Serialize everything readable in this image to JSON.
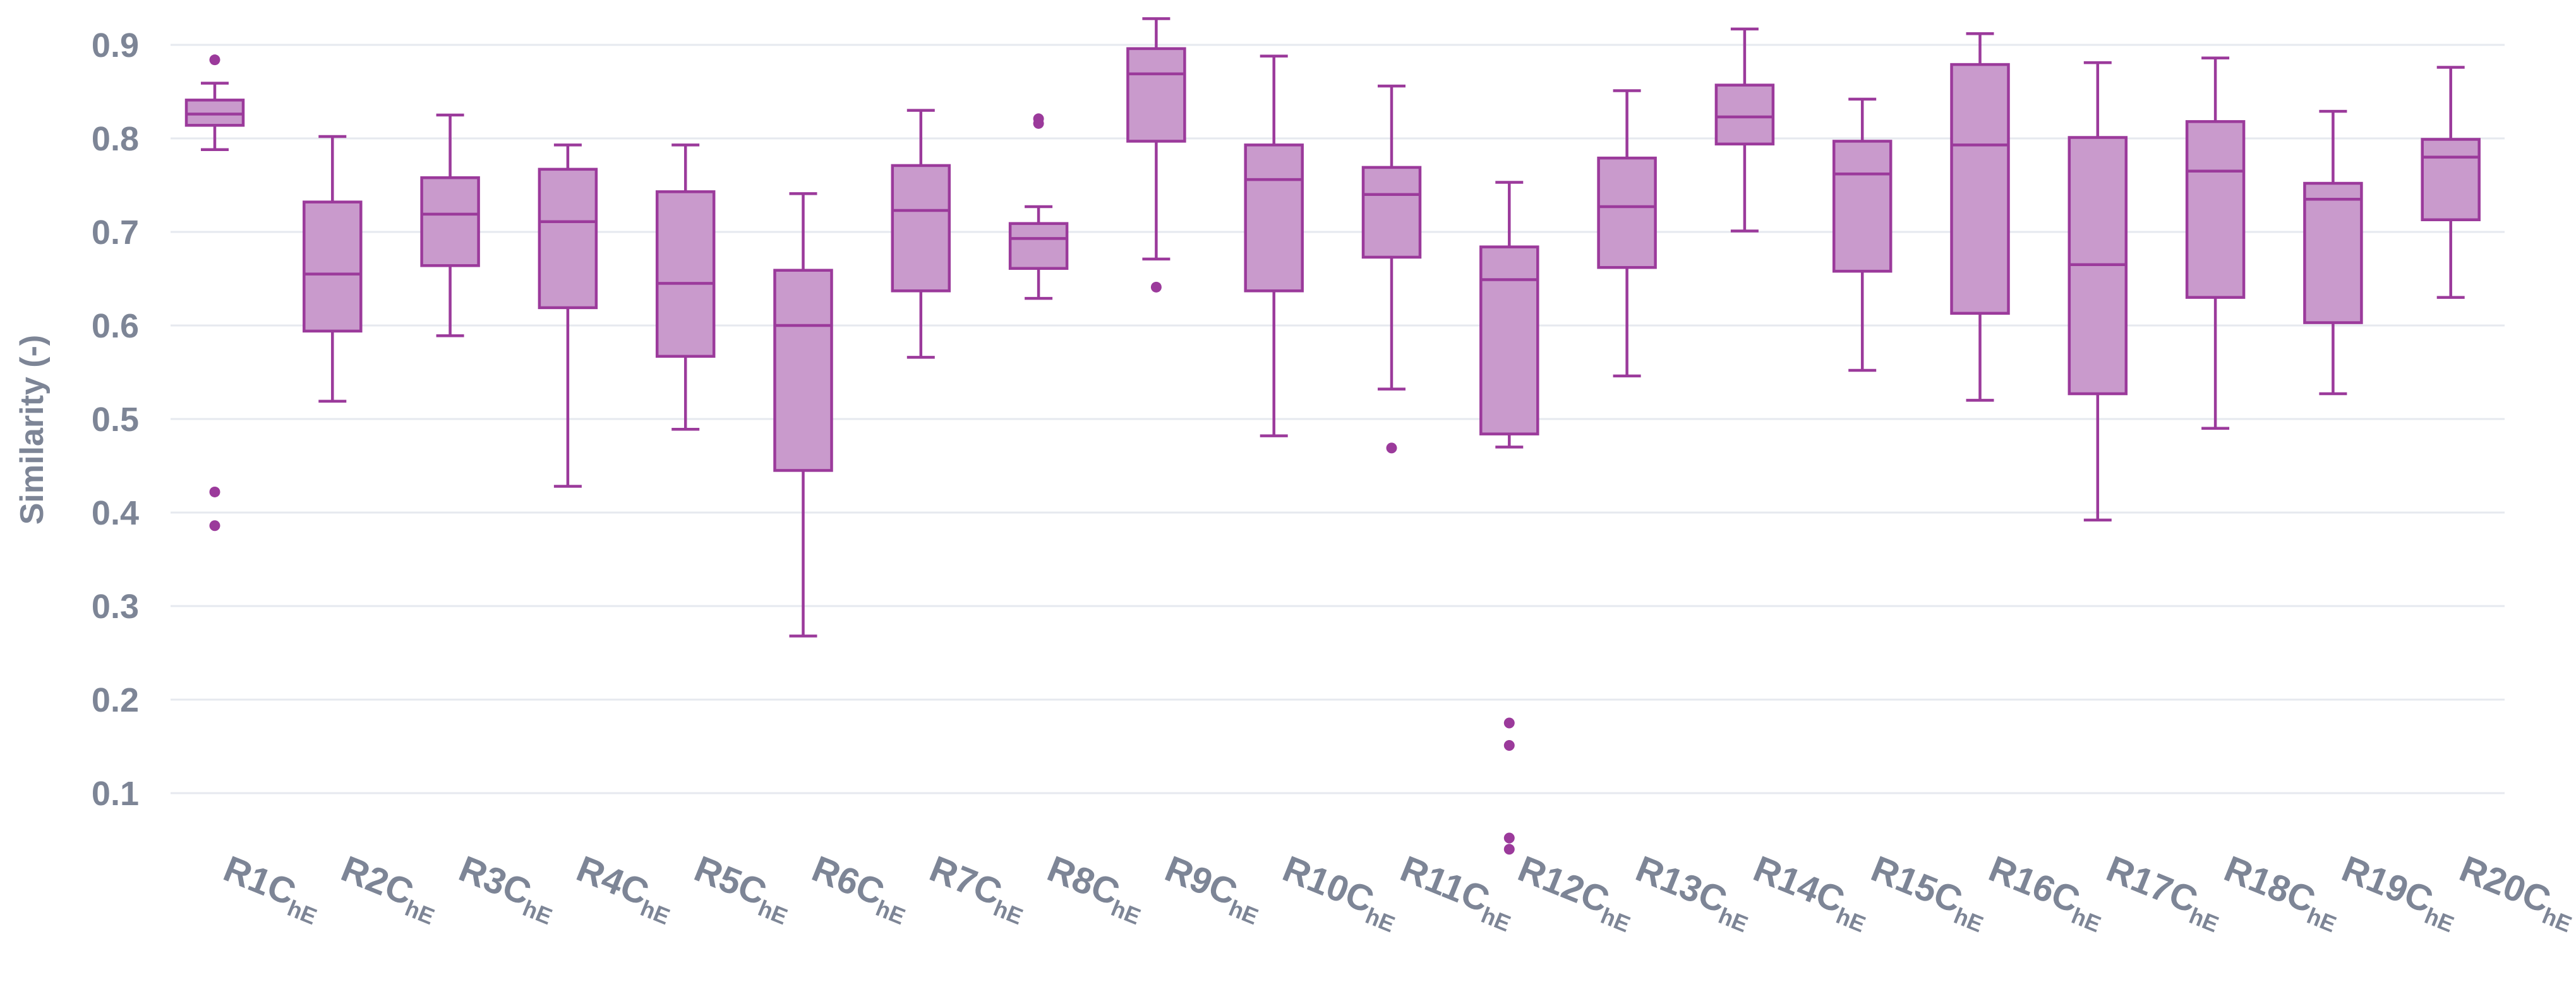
{
  "chart_data": {
    "type": "boxplot",
    "title": "",
    "xlabel": "",
    "ylabel": "Similarity (-)",
    "ylim": [
      0.04,
      0.93
    ],
    "yticks": [
      0.1,
      0.2,
      0.3,
      0.4,
      0.5,
      0.6,
      0.7,
      0.8,
      0.9
    ],
    "grid": true,
    "colors": {
      "fill": "#c99acc",
      "stroke": "#9b3a9b",
      "grid": "#e6e9ef",
      "text": "#7d8596"
    },
    "categories": [
      {
        "label": "R1C",
        "sub": "hE",
        "min": 0.788,
        "q1": 0.814,
        "median": 0.826,
        "q3": 0.841,
        "max": 0.859,
        "outliers": [
          0.884,
          0.422,
          0.386
        ]
      },
      {
        "label": "R2C",
        "sub": "hE",
        "min": 0.519,
        "q1": 0.594,
        "median": 0.655,
        "q3": 0.732,
        "max": 0.802,
        "outliers": []
      },
      {
        "label": "R3C",
        "sub": "hE",
        "min": 0.589,
        "q1": 0.664,
        "median": 0.719,
        "q3": 0.758,
        "max": 0.825,
        "outliers": []
      },
      {
        "label": "R4C",
        "sub": "hE",
        "min": 0.428,
        "q1": 0.619,
        "median": 0.711,
        "q3": 0.767,
        "max": 0.793,
        "outliers": []
      },
      {
        "label": "R5C",
        "sub": "hE",
        "min": 0.489,
        "q1": 0.567,
        "median": 0.645,
        "q3": 0.743,
        "max": 0.793,
        "outliers": []
      },
      {
        "label": "R6C",
        "sub": "hE",
        "min": 0.268,
        "q1": 0.445,
        "median": 0.6,
        "q3": 0.659,
        "max": 0.741,
        "outliers": []
      },
      {
        "label": "R7C",
        "sub": "hE",
        "min": 0.566,
        "q1": 0.637,
        "median": 0.723,
        "q3": 0.771,
        "max": 0.83,
        "outliers": []
      },
      {
        "label": "R8C",
        "sub": "hE",
        "min": 0.629,
        "q1": 0.661,
        "median": 0.693,
        "q3": 0.709,
        "max": 0.727,
        "outliers": [
          0.821,
          0.816
        ]
      },
      {
        "label": "R9C",
        "sub": "hE",
        "min": 0.671,
        "q1": 0.797,
        "median": 0.869,
        "q3": 0.896,
        "max": 0.928,
        "outliers": [
          0.641
        ]
      },
      {
        "label": "R10C",
        "sub": "hE",
        "min": 0.482,
        "q1": 0.637,
        "median": 0.756,
        "q3": 0.793,
        "max": 0.888,
        "outliers": []
      },
      {
        "label": "R11C",
        "sub": "hE",
        "min": 0.532,
        "q1": 0.673,
        "median": 0.74,
        "q3": 0.769,
        "max": 0.856,
        "outliers": [
          0.469
        ]
      },
      {
        "label": "R12C",
        "sub": "hE",
        "min": 0.47,
        "q1": 0.484,
        "median": 0.649,
        "q3": 0.684,
        "max": 0.753,
        "outliers": [
          0.175,
          0.151,
          0.052,
          0.04
        ]
      },
      {
        "label": "R13C",
        "sub": "hE",
        "min": 0.546,
        "q1": 0.662,
        "median": 0.727,
        "q3": 0.779,
        "max": 0.851,
        "outliers": []
      },
      {
        "label": "R14C",
        "sub": "hE",
        "min": 0.701,
        "q1": 0.794,
        "median": 0.823,
        "q3": 0.857,
        "max": 0.917,
        "outliers": []
      },
      {
        "label": "R15C",
        "sub": "hE",
        "min": 0.552,
        "q1": 0.658,
        "median": 0.762,
        "q3": 0.797,
        "max": 0.842,
        "outliers": []
      },
      {
        "label": "R16C",
        "sub": "hE",
        "min": 0.52,
        "q1": 0.613,
        "median": 0.793,
        "q3": 0.879,
        "max": 0.912,
        "outliers": []
      },
      {
        "label": "R17C",
        "sub": "hE",
        "min": 0.392,
        "q1": 0.527,
        "median": 0.665,
        "q3": 0.801,
        "max": 0.881,
        "outliers": []
      },
      {
        "label": "R18C",
        "sub": "hE",
        "min": 0.49,
        "q1": 0.63,
        "median": 0.765,
        "q3": 0.818,
        "max": 0.886,
        "outliers": []
      },
      {
        "label": "R19C",
        "sub": "hE",
        "min": 0.527,
        "q1": 0.603,
        "median": 0.735,
        "q3": 0.752,
        "max": 0.829,
        "outliers": []
      },
      {
        "label": "R20C",
        "sub": "hE",
        "min": 0.63,
        "q1": 0.713,
        "median": 0.78,
        "q3": 0.799,
        "max": 0.876,
        "outliers": []
      }
    ]
  }
}
